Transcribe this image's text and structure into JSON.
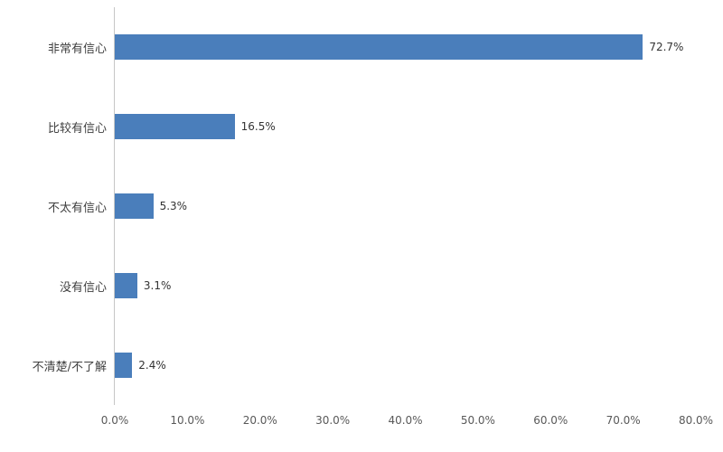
{
  "chart_data": {
    "type": "bar",
    "orientation": "horizontal",
    "title": "",
    "categories": [
      "非常有信心",
      "比较有信心",
      "不太有信心",
      "没有信心",
      "不清楚/不了解"
    ],
    "values": [
      72.7,
      16.5,
      5.3,
      3.1,
      2.4
    ],
    "value_labels": [
      "72.7%",
      "16.5%",
      "5.3%",
      "3.1%",
      "2.4%"
    ],
    "x_ticks": [
      "0.0%",
      "10.0%",
      "20.0%",
      "30.0%",
      "40.0%",
      "50.0%",
      "60.0%",
      "70.0%",
      "80.0%"
    ],
    "xlim": [
      0,
      80
    ],
    "bar_color": "#4a7ebb",
    "axis_line_color": "#c6c6c6",
    "grid": false,
    "legend": false
  }
}
